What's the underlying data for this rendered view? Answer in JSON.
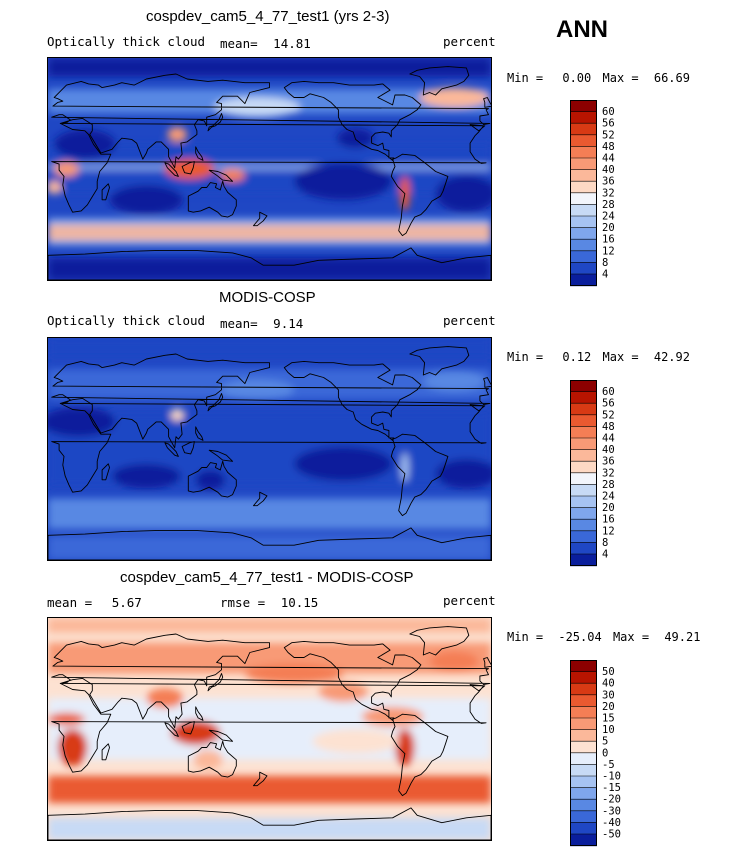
{
  "season": "ANN",
  "panels": [
    {
      "title": "cospdev_cam5_4_77_test1 (yrs 2-3)",
      "variable": "Optically thick cloud",
      "stat_label": "mean=",
      "stat_value": "14.81",
      "stat2_label": "",
      "stat2_value": "",
      "units": "percent",
      "min_label": "Min =",
      "min_value": "0.00",
      "max_label": "Max =",
      "max_value": "66.69",
      "scheme": "abs",
      "colorbar_labels": [
        "60",
        "56",
        "52",
        "48",
        "44",
        "40",
        "36",
        "32",
        "28",
        "24",
        "20",
        "16",
        "12",
        "8",
        "4"
      ],
      "colorbar_colors": [
        "#8c0000",
        "#b81400",
        "#d83a14",
        "#ea5a30",
        "#f47e55",
        "#f89a76",
        "#fbb89a",
        "#fdd9c4",
        "#f2f5fb",
        "#c7daf5",
        "#a6c3f2",
        "#7fa6ec",
        "#5988e3",
        "#3a68d8",
        "#1f47c4",
        "#0a1e9c"
      ]
    },
    {
      "title": "MODIS-COSP",
      "variable": "Optically thick cloud",
      "stat_label": "mean=",
      "stat_value": "9.14",
      "stat2_label": "",
      "stat2_value": "",
      "units": "percent",
      "min_label": "Min =",
      "min_value": "0.12",
      "max_label": "Max =",
      "max_value": "42.92",
      "scheme": "obs",
      "colorbar_labels": [
        "60",
        "56",
        "52",
        "48",
        "44",
        "40",
        "36",
        "32",
        "28",
        "24",
        "20",
        "16",
        "12",
        "8",
        "4"
      ],
      "colorbar_colors": [
        "#8c0000",
        "#b81400",
        "#d83a14",
        "#ea5a30",
        "#f47e55",
        "#f89a76",
        "#fbb89a",
        "#fdd9c4",
        "#f2f5fb",
        "#c7daf5",
        "#a6c3f2",
        "#7fa6ec",
        "#5988e3",
        "#3a68d8",
        "#1f47c4",
        "#0a1e9c"
      ]
    },
    {
      "title": "cospdev_cam5_4_77_test1 - MODIS-COSP",
      "variable": "",
      "stat_label": "mean =",
      "stat_value": "5.67",
      "stat2_label": "rmse =",
      "stat2_value": "10.15",
      "units": "percent",
      "min_label": "Min =",
      "min_value": "-25.04",
      "max_label": "Max =",
      "max_value": "49.21",
      "scheme": "diff",
      "colorbar_labels": [
        "50",
        "40",
        "30",
        "20",
        "15",
        "10",
        "5",
        "0",
        "-5",
        "-10",
        "-15",
        "-20",
        "-30",
        "-40",
        "-50"
      ],
      "colorbar_colors": [
        "#8c0000",
        "#b81400",
        "#d83a14",
        "#ea5a30",
        "#f47e55",
        "#f89a76",
        "#fbb89a",
        "#fde2d2",
        "#e6eefb",
        "#c7daf5",
        "#a6c3f2",
        "#7fa6ec",
        "#5988e3",
        "#3a68d8",
        "#1f47c4",
        "#0a1e9c"
      ]
    }
  ],
  "chart_data": [
    {
      "type": "heatmap",
      "title": "cospdev_cam5_4_77_test1 (yrs 2-3)",
      "variable": "Optically thick cloud",
      "units": "percent",
      "mean": 14.81,
      "min": 0.0,
      "max": 66.69,
      "contour_levels": [
        4,
        8,
        12,
        16,
        20,
        24,
        28,
        32,
        36,
        40,
        44,
        48,
        52,
        56,
        60
      ]
    },
    {
      "type": "heatmap",
      "title": "MODIS-COSP",
      "variable": "Optically thick cloud",
      "units": "percent",
      "mean": 9.14,
      "min": 0.12,
      "max": 42.92,
      "contour_levels": [
        4,
        8,
        12,
        16,
        20,
        24,
        28,
        32,
        36,
        40,
        44,
        48,
        52,
        56,
        60
      ]
    },
    {
      "type": "heatmap",
      "title": "cospdev_cam5_4_77_test1 - MODIS-COSP",
      "units": "percent",
      "mean": 5.67,
      "rmse": 10.15,
      "min": -25.04,
      "max": 49.21,
      "contour_levels": [
        -50,
        -40,
        -30,
        -20,
        -15,
        -10,
        -5,
        0,
        5,
        10,
        15,
        20,
        30,
        40,
        50
      ]
    }
  ]
}
